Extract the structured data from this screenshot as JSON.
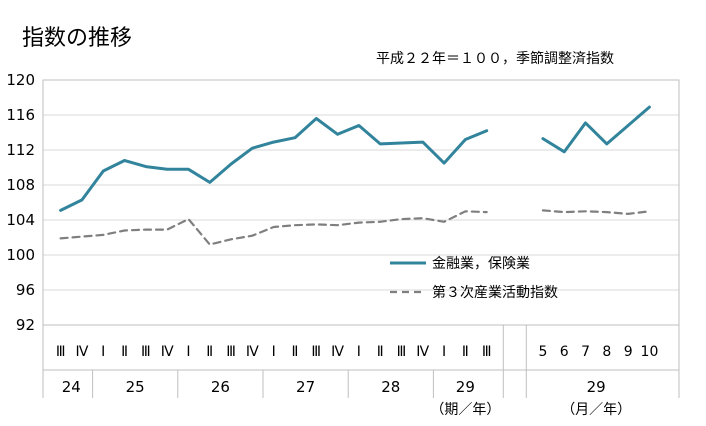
{
  "chart_data": {
    "type": "line",
    "title": "指数の推移",
    "subtitle": "平成２２年＝１００，季節調整済指数",
    "ylim": [
      92,
      120
    ],
    "yticks": [
      "92",
      "96",
      "100",
      "104",
      "108",
      "112",
      "116",
      "120"
    ],
    "grid": true,
    "legend_position": "right-middle",
    "quarterly": {
      "unit_label": "（期／年）",
      "categories": [
        "Ⅲ",
        "Ⅳ",
        "Ⅰ",
        "Ⅱ",
        "Ⅲ",
        "Ⅳ",
        "Ⅰ",
        "Ⅱ",
        "Ⅲ",
        "Ⅳ",
        "Ⅰ",
        "Ⅱ",
        "Ⅲ",
        "Ⅳ",
        "Ⅰ",
        "Ⅱ",
        "Ⅲ",
        "Ⅳ",
        "Ⅰ",
        "Ⅱ",
        "Ⅲ"
      ],
      "year_labels": [
        "24",
        "25",
        "26",
        "27",
        "28",
        "29"
      ],
      "year_spans": [
        [
          0,
          1
        ],
        [
          2,
          5
        ],
        [
          6,
          9
        ],
        [
          10,
          13
        ],
        [
          14,
          17
        ],
        [
          18,
          20
        ]
      ]
    },
    "monthly": {
      "unit_label": "（月／年）",
      "categories": [
        "5",
        "6",
        "7",
        "8",
        "9",
        "10"
      ],
      "year_labels": [
        "29"
      ]
    },
    "series": [
      {
        "name": "金融業，保険業",
        "color": "#31849b",
        "style": "solid",
        "quarterly": [
          105.1,
          106.3,
          109.6,
          110.8,
          110.1,
          109.8,
          109.8,
          108.3,
          110.4,
          112.2,
          112.9,
          113.4,
          115.6,
          113.8,
          114.8,
          112.7,
          112.8,
          112.9,
          110.5,
          113.2,
          114.2
        ],
        "monthly": [
          113.3,
          111.8,
          115.1,
          112.7,
          114.8,
          116.9
        ]
      },
      {
        "name": "第３次産業活動指数",
        "color": "#7f7f7f",
        "style": "dashed",
        "quarterly": [
          101.9,
          102.1,
          102.3,
          102.8,
          102.9,
          102.9,
          104.1,
          101.2,
          101.8,
          102.2,
          103.2,
          103.4,
          103.5,
          103.4,
          103.7,
          103.8,
          104.1,
          104.2,
          103.8,
          105.0,
          104.9
        ],
        "monthly": [
          105.1,
          104.9,
          105.0,
          104.9,
          104.7,
          105.0
        ]
      }
    ]
  }
}
